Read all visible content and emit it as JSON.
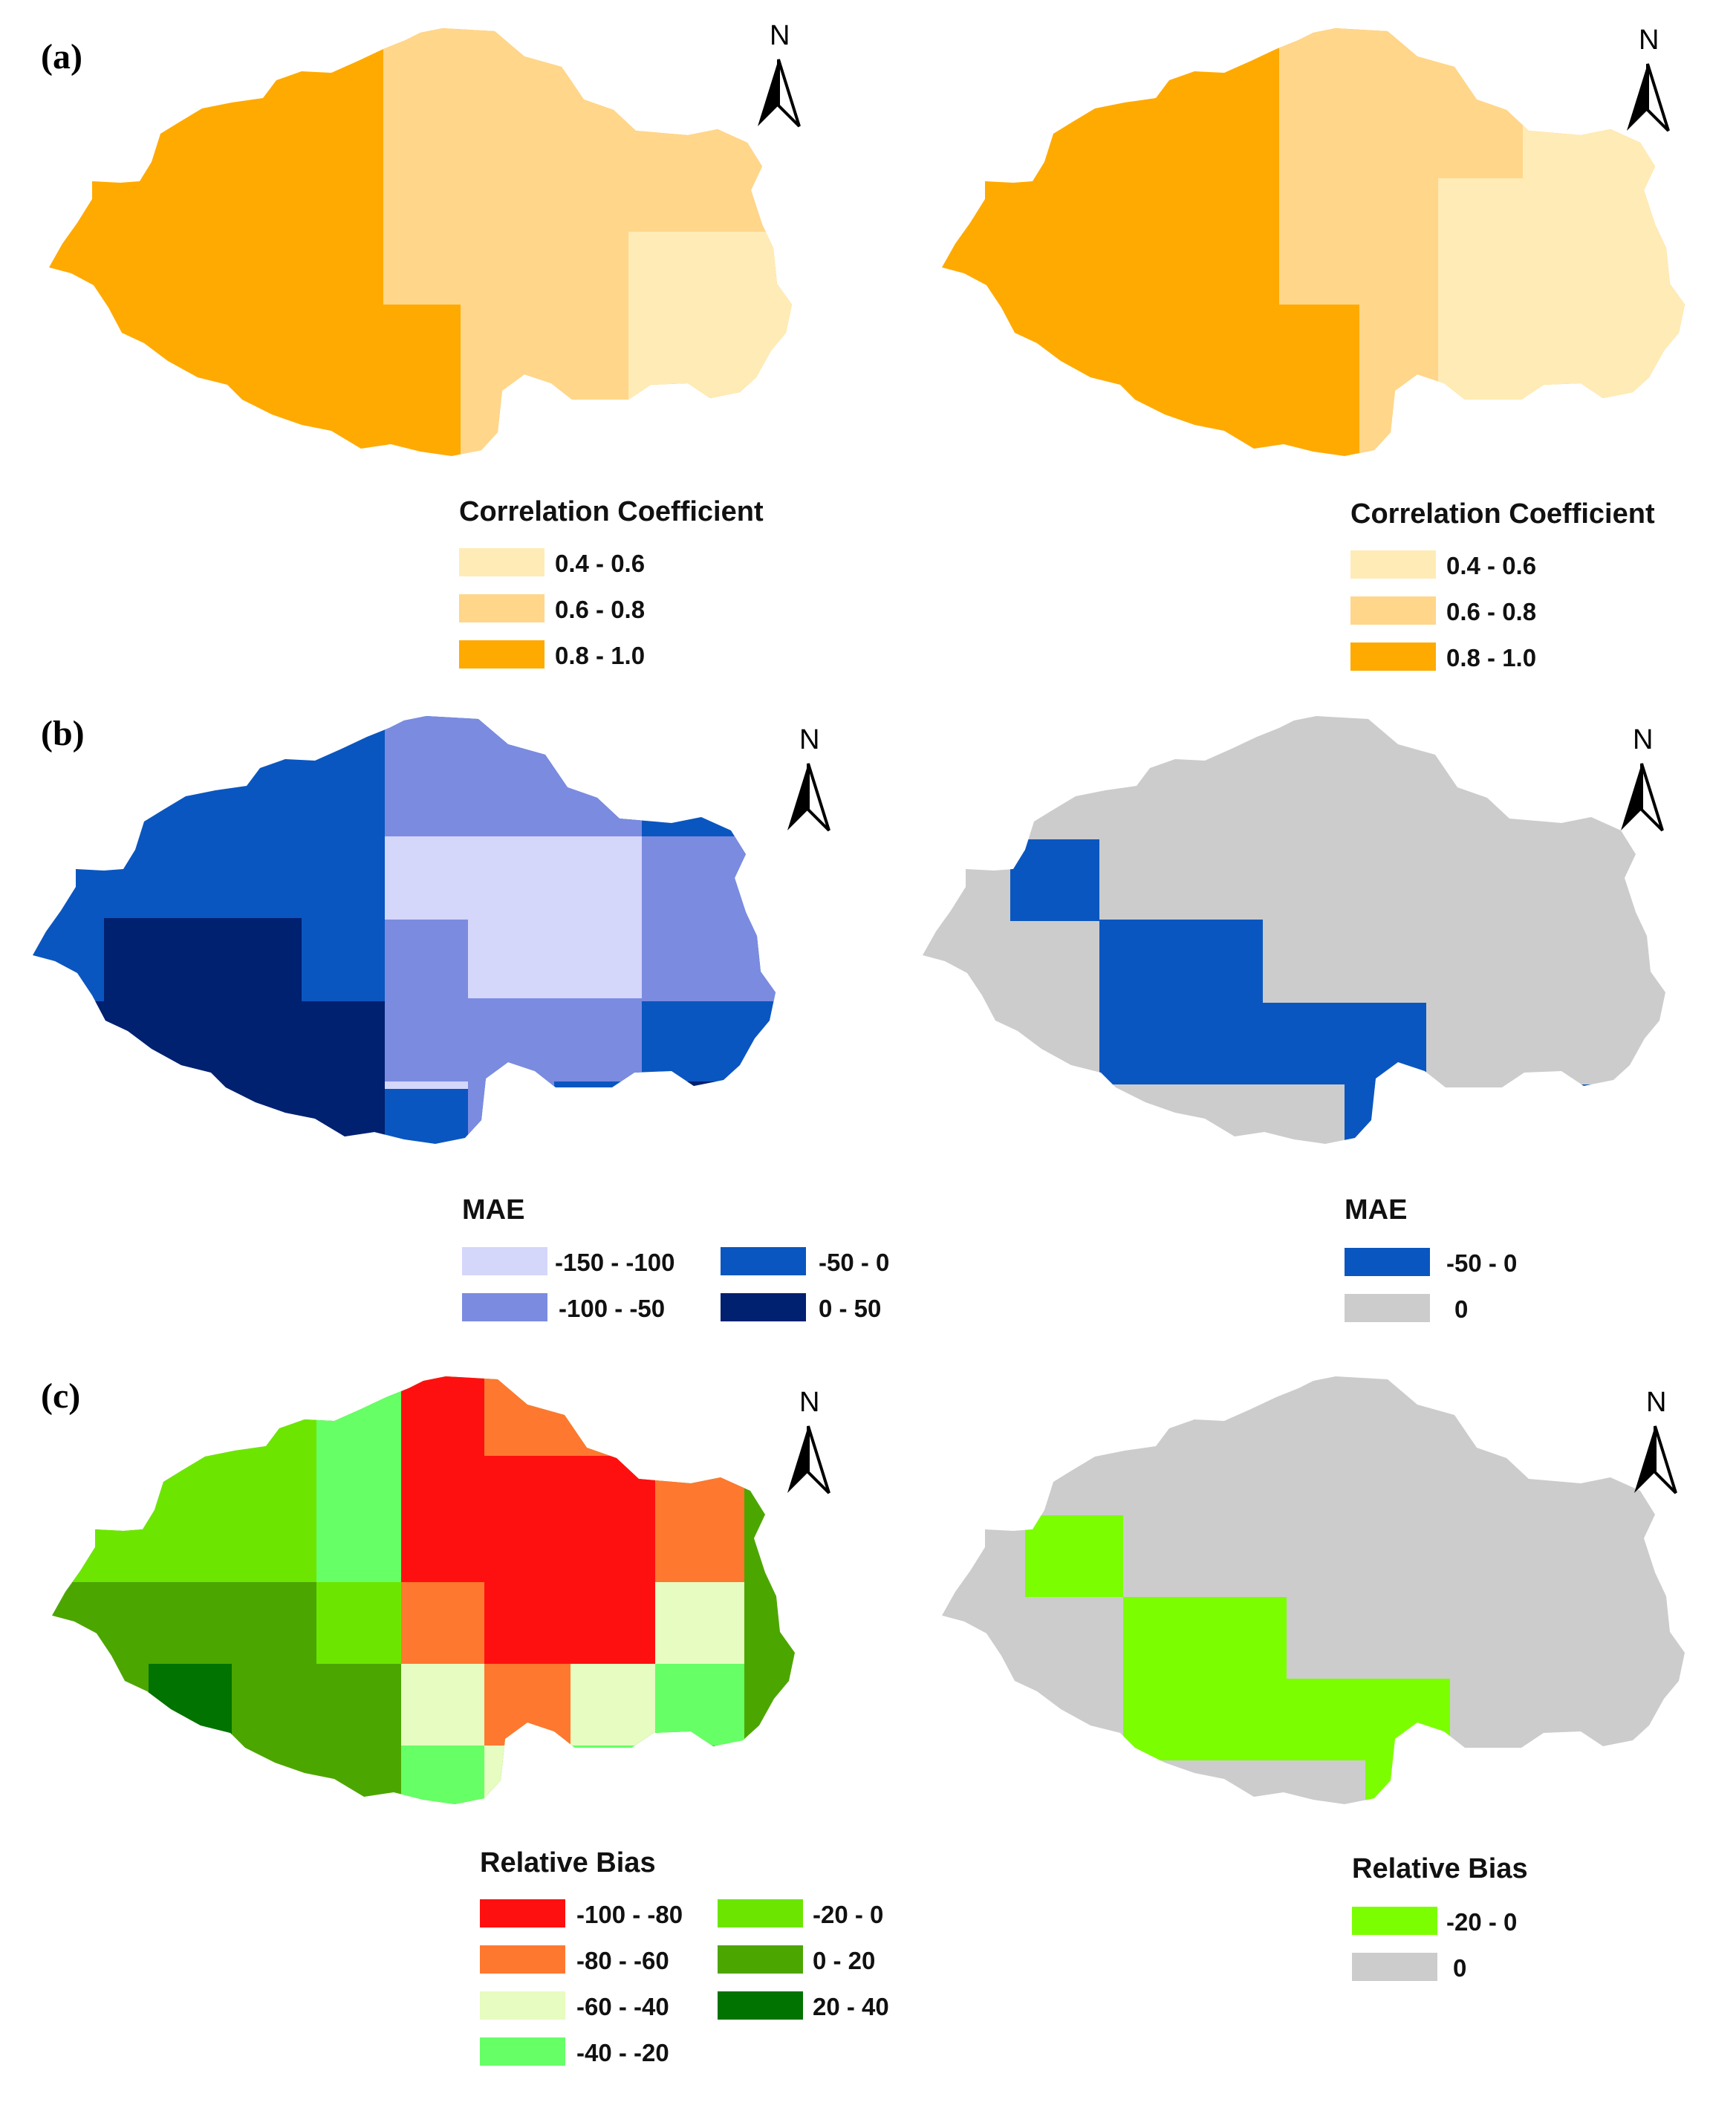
{
  "panels": [
    {
      "label": "(a)",
      "left_map": {
        "legend_title": "Correlation Coefficient",
        "legend": [
          {
            "label": "0.4 - 0.6",
            "color": "#FFEBB5"
          },
          {
            "label": "0.6 - 0.8",
            "color": "#FFD68A"
          },
          {
            "label": "0.8 - 1.0",
            "color": "#FFAA00"
          }
        ]
      },
      "right_map": {
        "legend_title": "Correlation Coefficient",
        "legend": [
          {
            "label": "0.4 - 0.6",
            "color": "#FFEBB5"
          },
          {
            "label": "0.6 - 0.8",
            "color": "#FFD68A"
          },
          {
            "label": "0.8 - 1.0",
            "color": "#FFAA00"
          }
        ]
      }
    },
    {
      "label": "(b)",
      "left_map": {
        "legend_title": "MAE",
        "legend": [
          {
            "label": "-150 - -100",
            "color": "#D4D6FA"
          },
          {
            "label": "-100 - -50",
            "color": "#7B8BE0"
          },
          {
            "label": "-50 - 0",
            "color": "#0A56C0"
          },
          {
            "label": "0 - 50",
            "color": "#002070"
          }
        ]
      },
      "right_map": {
        "legend_title": "MAE",
        "legend": [
          {
            "label": "-50 - 0",
            "color": "#0A56C0"
          },
          {
            "label": "0",
            "color": "#CCCCCC"
          }
        ]
      }
    },
    {
      "label": "(c)",
      "left_map": {
        "legend_title": "Relative Bias",
        "legend": [
          {
            "label": "-100 - -80",
            "color": "#FF1010"
          },
          {
            "label": "-80 - -60",
            "color": "#FF7830"
          },
          {
            "label": "-60 - -40",
            "color": "#E6FCC0"
          },
          {
            "label": "-40 - -20",
            "color": "#66FF66"
          },
          {
            "label": "-20 - 0",
            "color": "#6CE600"
          },
          {
            "label": "0 - 20",
            "color": "#4CA600"
          },
          {
            "label": "20 - 40",
            "color": "#007300"
          }
        ]
      },
      "right_map": {
        "legend_title": "Relative Bias",
        "legend": [
          {
            "label": "-20 - 0",
            "color": "#7BFF00"
          },
          {
            "label": "0",
            "color": "#CCCCCC"
          }
        ]
      }
    }
  ],
  "north_arrow_label": "N"
}
